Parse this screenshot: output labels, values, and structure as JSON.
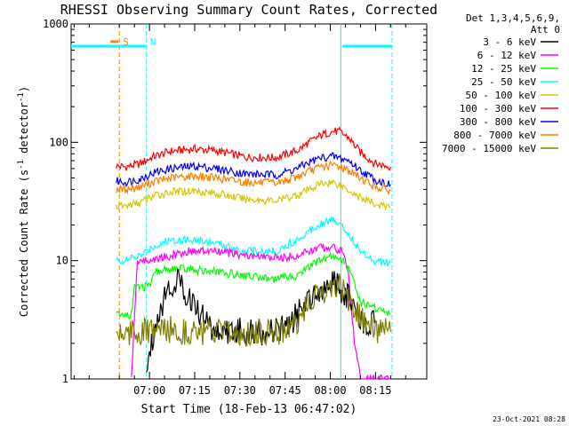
{
  "chart_data": {
    "type": "line",
    "title": "RHESSI Observing Summary Count Rates, Corrected",
    "xlabel": "Start Time (18-Feb-13 06:47:02)",
    "ylabel_main": "Corrected Count Rate (s",
    "ylabel_sup1": "-1",
    "ylabel_mid": " detector",
    "ylabel_sup2": "-1",
    "ylabel_end": ")",
    "y_scale": "log",
    "ylim": [
      1,
      1000
    ],
    "xlim_minutes_after_0647": [
      -13,
      105
    ],
    "x_ticks": [
      {
        "label": "07:00",
        "minute": 13
      },
      {
        "label": "07:15",
        "minute": 28
      },
      {
        "label": "07:30",
        "minute": 43
      },
      {
        "label": "07:45",
        "minute": 58
      },
      {
        "label": "08:00",
        "minute": 73
      },
      {
        "label": "08:15",
        "minute": 88
      }
    ],
    "y_ticks": [
      {
        "label": "1000",
        "value": 1000
      },
      {
        "label": "100",
        "value": 100
      },
      {
        "label": "10",
        "value": 10
      },
      {
        "label": "1",
        "value": 1
      }
    ],
    "legend": {
      "header": [
        "Det 1,3,4,5,6,9,",
        "Att 0"
      ],
      "entries": [
        {
          "label": "3 - 6 keV",
          "color": "#000000"
        },
        {
          "label": "6 - 12 keV",
          "color": "#ff00ff"
        },
        {
          "label": "12 - 25 keV",
          "color": "#00ff00"
        },
        {
          "label": "25 - 50 keV",
          "color": "#00ffff"
        },
        {
          "label": "50 - 100 keV",
          "color": "#d4c800"
        },
        {
          "label": "100 - 300 keV",
          "color": "#ff0000"
        },
        {
          "label": "300 - 800 keV",
          "color": "#0000ff"
        },
        {
          "label": "800 - 7000 keV",
          "color": "#ff8000"
        },
        {
          "label": "7000 - 15000 keV",
          "color": "#808000"
        }
      ],
      "placement": "right"
    },
    "flags": [
      {
        "label": "S",
        "color": "#ff8000",
        "minute": 3
      },
      {
        "label": "N",
        "color": "#00ffff",
        "minute": 12
      }
    ],
    "vertical_markers": [
      {
        "color": "#ff8000",
        "minute": 3
      },
      {
        "color": "#00ffff",
        "minute": 12
      },
      {
        "color": "#00ffff",
        "minute": 76.5
      },
      {
        "color": "#00ffff",
        "minute": 93.5
      }
    ],
    "night_segments": [
      {
        "start": -13,
        "end": 12,
        "value": 650
      },
      {
        "start": 77,
        "end": 93.5,
        "value": 650
      }
    ],
    "series": [
      {
        "name": "100 - 300 keV",
        "color": "#ff0000",
        "x": [
          2,
          5,
          10,
          14,
          20,
          28,
          35,
          45,
          55,
          62,
          66,
          70,
          74,
          76,
          79,
          83,
          88,
          93
        ],
        "y": [
          63,
          62,
          66,
          75,
          84,
          88,
          85,
          75,
          74,
          85,
          100,
          115,
          124,
          123,
          110,
          82,
          66,
          62
        ]
      },
      {
        "name": "300 - 800 keV",
        "color": "#0000ff",
        "x": [
          2,
          5,
          10,
          14,
          20,
          28,
          35,
          45,
          55,
          62,
          66,
          70,
          74,
          76,
          79,
          83,
          88,
          93
        ],
        "y": [
          47,
          46,
          49,
          55,
          60,
          63,
          60,
          54,
          53,
          60,
          68,
          74,
          76,
          74,
          70,
          58,
          48,
          44
        ]
      },
      {
        "name": "800 - 7000 keV",
        "color": "#ff8000",
        "x": [
          2,
          5,
          10,
          14,
          20,
          28,
          35,
          45,
          55,
          62,
          66,
          70,
          74,
          76,
          79,
          83,
          88,
          93
        ],
        "y": [
          40,
          40,
          42,
          46,
          50,
          52,
          50,
          46,
          45,
          51,
          57,
          62,
          64,
          63,
          58,
          50,
          42,
          39
        ]
      },
      {
        "name": "50 - 100 keV",
        "color": "#d4c800",
        "x": [
          2,
          5,
          10,
          14,
          20,
          28,
          35,
          45,
          55,
          62,
          66,
          70,
          74,
          76,
          79,
          83,
          88,
          93
        ],
        "y": [
          29,
          29,
          31,
          35,
          38,
          39,
          37,
          33,
          32,
          36,
          40,
          45,
          46,
          44,
          40,
          34,
          30,
          28
        ]
      },
      {
        "name": "25 - 50 keV",
        "color": "#00ffff",
        "x": [
          2,
          5,
          10,
          14,
          20,
          28,
          35,
          45,
          55,
          62,
          66,
          70,
          74,
          76,
          79,
          83,
          88,
          93
        ],
        "y": [
          10,
          10,
          11,
          13,
          15,
          15,
          14,
          12,
          12,
          15,
          18,
          21,
          22,
          21,
          17,
          12,
          10,
          9.5
        ]
      },
      {
        "name": "6 - 12 keV",
        "color": "#ff00ff",
        "x": [
          7,
          9,
          11,
          13,
          16,
          20,
          26,
          35,
          45,
          55,
          62,
          66,
          70,
          74,
          77,
          79,
          81,
          83,
          88,
          93
        ],
        "y": [
          1,
          10,
          10,
          10,
          10.5,
          11,
          12,
          12,
          11,
          10.5,
          11,
          12,
          13,
          13,
          12,
          8,
          2,
          1,
          1,
          1
        ]
      },
      {
        "name": "12 - 25 keV",
        "color": "#00ff00",
        "x": [
          2,
          7,
          8,
          13,
          15,
          20,
          26,
          35,
          45,
          55,
          62,
          66,
          70,
          74,
          77,
          80,
          83,
          88,
          93
        ],
        "y": [
          3.5,
          3.5,
          6,
          6,
          8,
          8.5,
          8.5,
          8,
          7.5,
          7,
          7.5,
          9,
          10,
          11,
          10,
          8,
          4.5,
          4,
          3.5
        ]
      },
      {
        "name": "3 - 6 keV",
        "color": "#000000",
        "x": [
          12,
          15,
          18,
          22,
          26,
          30,
          35,
          40,
          45,
          50,
          55,
          60,
          64,
          66,
          70,
          74,
          77,
          80,
          83,
          88
        ],
        "y": [
          1.2,
          3,
          5,
          7,
          5,
          3.5,
          2.5,
          2.5,
          2.5,
          2.5,
          2.5,
          3,
          4,
          5,
          6,
          6.5,
          5.5,
          4.5,
          3,
          3
        ]
      },
      {
        "name": "7000 - 15000 keV",
        "color": "#808000",
        "x": [
          2,
          7,
          12,
          20,
          30,
          40,
          50,
          60,
          65,
          70,
          74,
          77,
          80,
          85,
          90,
          93
        ],
        "y": [
          2.5,
          2.5,
          2.5,
          2.6,
          2.5,
          2.4,
          2.5,
          2.6,
          4,
          5.5,
          6,
          6,
          4,
          2.8,
          2.5,
          2.5
        ]
      }
    ]
  },
  "footer_stamp": "23-Oct-2021 08:28"
}
